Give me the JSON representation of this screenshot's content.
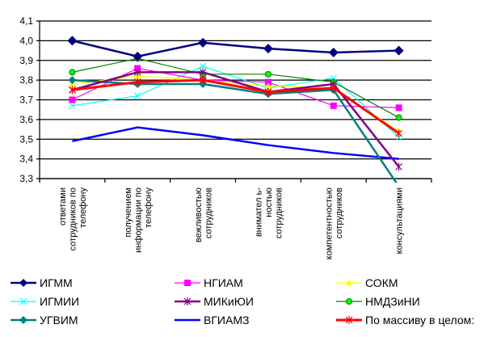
{
  "chart_data": {
    "type": "line",
    "title": "",
    "xlabel": "",
    "ylabel": "",
    "ylim": [
      3.3,
      4.1
    ],
    "yticks": [
      "3,3",
      "3,4",
      "3,5",
      "3,6",
      "3,7",
      "3,8",
      "3,9",
      "4,0",
      "4,1"
    ],
    "grid": true,
    "legend_position": "bottom",
    "categories": [
      [
        "ответами",
        "сотрудников по",
        "телефону"
      ],
      [
        "получением",
        "информации по",
        "телефону"
      ],
      [
        "вежливостью",
        "сотрудников"
      ],
      [
        "внимател ь-",
        "ностью",
        "сотрудников"
      ],
      [
        "компетентностью",
        "сотрудников"
      ],
      [
        "консультациями"
      ]
    ],
    "series": [
      {
        "name": "ИГММ",
        "color": "#000080",
        "marker": "diamond",
        "values": [
          4.0,
          3.92,
          3.99,
          3.96,
          3.94,
          3.95
        ]
      },
      {
        "name": "НГИАМ",
        "color": "#FF00FF",
        "marker": "square",
        "values": [
          3.7,
          3.86,
          3.8,
          3.79,
          3.67,
          3.66
        ]
      },
      {
        "name": "СОКМ",
        "color": "#FFFF00",
        "marker": "triangle",
        "values": [
          3.78,
          3.82,
          3.8,
          3.77,
          3.76,
          3.54
        ]
      },
      {
        "name": "ИГМИИ",
        "color": "#00FFFF",
        "marker": "x",
        "values": [
          3.67,
          3.72,
          3.87,
          3.76,
          3.81,
          3.51
        ]
      },
      {
        "name": "МИКиЮИ",
        "color": "#800080",
        "marker": "star",
        "values": [
          3.75,
          3.84,
          3.84,
          3.74,
          3.78,
          3.36
        ]
      },
      {
        "name": "НМДЗиНИ",
        "color": "#008000",
        "marker": "circle",
        "values": [
          3.84,
          3.91,
          3.83,
          3.83,
          3.79,
          3.61
        ]
      },
      {
        "name": "УГВИМ",
        "color": "#008080",
        "marker": "diamond",
        "values": [
          3.8,
          3.78,
          3.78,
          3.73,
          3.75,
          3.26
        ]
      },
      {
        "name": "ВГИАМЗ",
        "color": "#0000FF",
        "marker": "none",
        "values": [
          3.49,
          3.56,
          3.52,
          3.47,
          3.43,
          3.4
        ]
      },
      {
        "name": "По массиву в целом:",
        "color": "#FF0000",
        "marker": "star",
        "values": [
          3.75,
          3.79,
          3.8,
          3.74,
          3.76,
          3.53
        ]
      }
    ]
  }
}
